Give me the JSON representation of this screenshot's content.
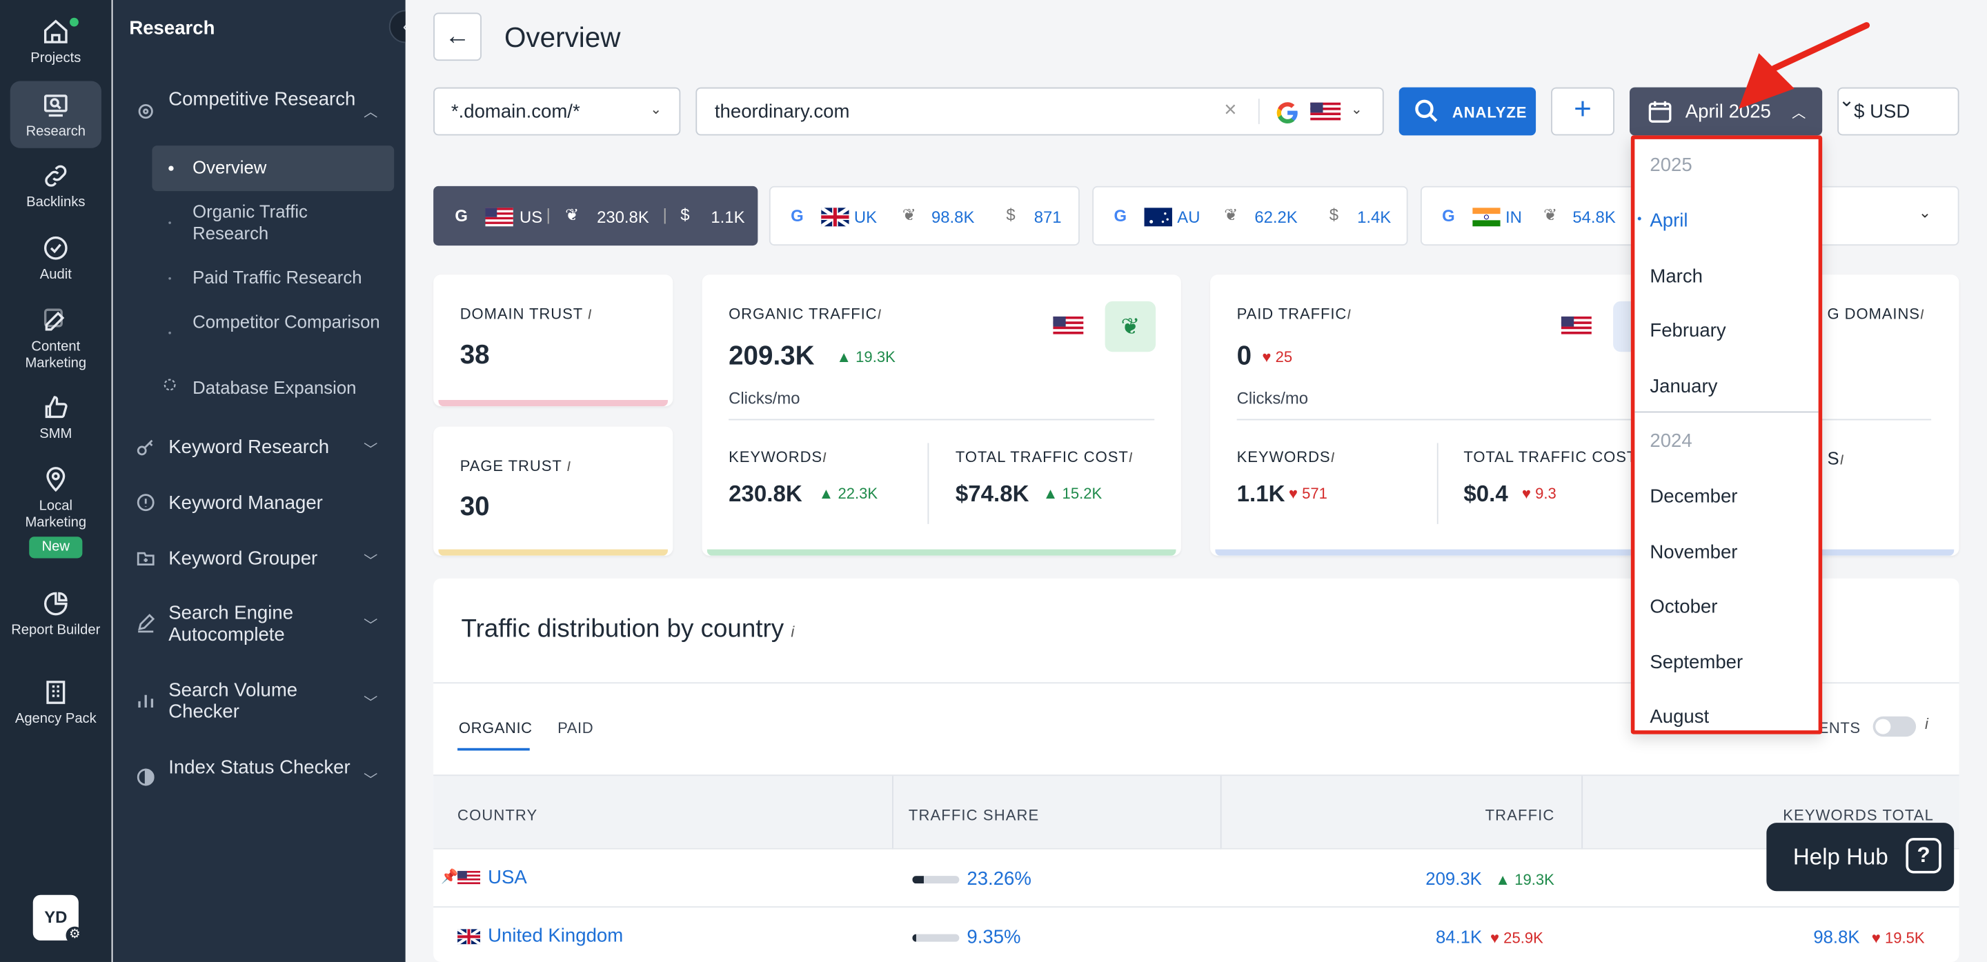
{
  "rail": {
    "items": [
      {
        "label": "Projects",
        "icon": "home-icon"
      },
      {
        "label": "Research",
        "icon": "research-icon"
      },
      {
        "label": "Backlinks",
        "icon": "link-icon"
      },
      {
        "label": "Audit",
        "icon": "check-circle-icon"
      },
      {
        "label": "Content Marketing",
        "icon": "edit-icon"
      },
      {
        "label": "SMM",
        "icon": "thumbs-up-icon"
      },
      {
        "label": "Local Marketing",
        "icon": "map-pin-icon"
      },
      {
        "label": "Report Builder",
        "icon": "pie-chart-icon"
      },
      {
        "label": "Agency Pack",
        "icon": "building-icon"
      }
    ],
    "new_badge": "New",
    "avatar": "YD"
  },
  "sidebar": {
    "title": "Research",
    "groups": [
      {
        "label": "Competitive Research",
        "icon": "target-icon"
      },
      {
        "label": "Keyword Research",
        "icon": "key-icon"
      },
      {
        "label": "Keyword Manager",
        "icon": "info-circle-icon"
      },
      {
        "label": "Keyword Grouper",
        "icon": "folder-plus-icon"
      },
      {
        "label": "Search Engine Autocomplete",
        "icon": "pen-icon"
      },
      {
        "label": "Search Volume Checker",
        "icon": "bar-chart-icon"
      },
      {
        "label": "Index Status Checker",
        "icon": "half-circle-icon"
      }
    ],
    "sub_items": [
      "Overview",
      "Organic Traffic Research",
      "Paid Traffic Research",
      "Competitor Comparison",
      "Database Expansion"
    ]
  },
  "header": {
    "title": "Overview",
    "scope": "*.domain.com/*",
    "domain": "theordinary.com",
    "analyze": "ANALYZE",
    "date": "April 2025",
    "currency": "$ USD"
  },
  "country_tabs": [
    {
      "code": "US",
      "traffic": "230.8K",
      "cost": "1.1K"
    },
    {
      "code": "UK",
      "traffic": "98.8K",
      "cost": "871"
    },
    {
      "code": "AU",
      "traffic": "62.2K",
      "cost": "1.4K"
    },
    {
      "code": "IN",
      "traffic": "54.8K",
      "cost": ""
    }
  ],
  "metrics": {
    "domain_trust": {
      "label": "DOMAIN TRUST",
      "value": "38"
    },
    "page_trust": {
      "label": "PAGE TRUST",
      "value": "30"
    },
    "organic": {
      "label": "ORGANIC TRAFFIC",
      "value": "209.3K",
      "delta": "19.3K",
      "unit": "Clicks/mo",
      "kw_label": "KEYWORDS",
      "kw_value": "230.8K",
      "kw_delta": "22.3K",
      "cost_label": "TOTAL TRAFFIC COST",
      "cost_value": "$74.8K",
      "cost_delta": "15.2K"
    },
    "paid": {
      "label": "PAID TRAFFIC",
      "value": "0",
      "delta": "25",
      "unit": "Clicks/mo",
      "kw_label": "KEYWORDS",
      "kw_value": "1.1K",
      "kw_delta": "571",
      "cost_label": "TOTAL TRAFFIC COST",
      "cost_value": "$0.4",
      "cost_delta": "9.3"
    },
    "referring_partial": "G DOMAINS",
    "s_partial": "S"
  },
  "distribution": {
    "title": "Traffic distribution by country",
    "tabs": [
      "ORGANIC",
      "PAID"
    ],
    "toggle_label": "ENTS",
    "columns": [
      "COUNTRY",
      "TRAFFIC SHARE",
      "TRAFFIC",
      "KEYWORDS TOTAL"
    ],
    "rows": [
      {
        "country": "USA",
        "share": "23.26%",
        "share_frac": 0.23,
        "traffic": "209.3K",
        "traffic_delta": "19.3K",
        "traffic_dir": "up",
        "keywords": "",
        "kw_delta": ""
      },
      {
        "country": "United Kingdom",
        "share": "9.35%",
        "share_frac": 0.09,
        "traffic": "84.1K",
        "traffic_delta": "25.9K",
        "traffic_dir": "down",
        "keywords": "98.8K",
        "kw_delta": "19.5K"
      }
    ]
  },
  "date_dropdown": {
    "groups": [
      {
        "year": "2025",
        "months": [
          "April",
          "March",
          "February",
          "January"
        ]
      },
      {
        "year": "2024",
        "months": [
          "December",
          "November",
          "October",
          "September",
          "August"
        ]
      }
    ],
    "selected": "April"
  },
  "help": {
    "label": "Help Hub"
  },
  "colors": {
    "primary": "#1d6fd6",
    "accent_red": "#e8261b",
    "up": "#1e8a4a",
    "down": "#d42a2a",
    "rail": "#1e2a38"
  }
}
